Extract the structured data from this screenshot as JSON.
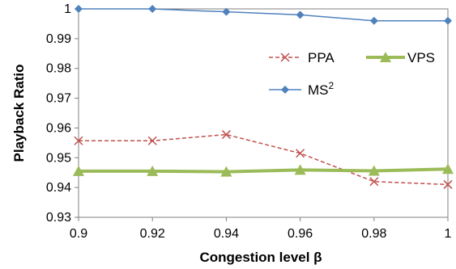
{
  "chart_data": {
    "type": "line",
    "title": "",
    "xlabel": "Congestion level  β",
    "ylabel": "Playback Ratio",
    "x": [
      0.9,
      0.92,
      0.94,
      0.96,
      0.98,
      1
    ],
    "x_tick_labels": [
      "0.9",
      "0.92",
      "0.94",
      "0.96",
      "0.98",
      "1"
    ],
    "xlim": [
      0.9,
      1
    ],
    "ylim": [
      0.93,
      1
    ],
    "y_ticks": [
      0.93,
      0.94,
      0.95,
      0.96,
      0.97,
      0.98,
      0.99,
      1
    ],
    "y_tick_labels": [
      "0.93",
      "0.94",
      "0.95",
      "0.96",
      "0.97",
      "0.98",
      "0.99",
      "1"
    ],
    "grid": false,
    "legend_placement": "top-right, inside plot",
    "series": [
      {
        "name": "PPA",
        "values": [
          0.9557,
          0.9557,
          0.9578,
          0.9515,
          0.942,
          0.941
        ],
        "color": "#c0504d",
        "line_style": "dashed",
        "marker": "x"
      },
      {
        "name": "VPS",
        "values": [
          0.9455,
          0.9455,
          0.9453,
          0.9459,
          0.9456,
          0.9462
        ],
        "color": "#9bbb59",
        "line_style": "solid-thick",
        "marker": "triangle"
      },
      {
        "name": "MS",
        "name_superscript": "2",
        "values": [
          1.0,
          1.0,
          0.999,
          0.998,
          0.996,
          0.996
        ],
        "color": "#4f81bd",
        "line_style": "solid",
        "marker": "diamond"
      }
    ]
  }
}
